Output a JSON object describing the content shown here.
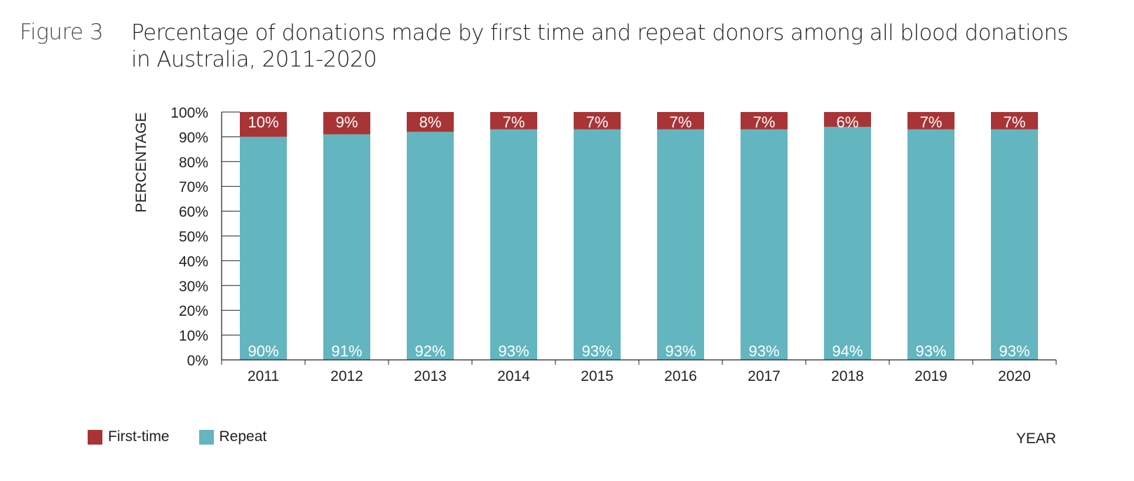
{
  "figure": {
    "label": "Figure 3",
    "title": "Percentage of donations made by first time and repeat donors among all blood donations in Australia, 2011-2020"
  },
  "chart_data": {
    "type": "bar",
    "stacked": true,
    "categories": [
      "2011",
      "2012",
      "2013",
      "2014",
      "2015",
      "2016",
      "2017",
      "2018",
      "2019",
      "2020"
    ],
    "series": [
      {
        "name": "Repeat",
        "color": "#63b5c0",
        "values": [
          90,
          91,
          92,
          93,
          93,
          93,
          93,
          94,
          93,
          93
        ],
        "labels": [
          "90%",
          "91%",
          "92%",
          "93%",
          "93%",
          "93%",
          "93%",
          "94%",
          "93%",
          "93%"
        ]
      },
      {
        "name": "First-time",
        "color": "#a83436",
        "values": [
          10,
          9,
          8,
          7,
          7,
          7,
          7,
          6,
          7,
          7
        ],
        "labels": [
          "10%",
          "9%",
          "8%",
          "7%",
          "7%",
          "7%",
          "7%",
          "6%",
          "7%",
          "7%"
        ]
      }
    ],
    "ylabel": "PERCENTAGE",
    "xlabel": "YEAR",
    "ylim": [
      0,
      100
    ],
    "yticks": [
      "0%",
      "10%",
      "20%",
      "30%",
      "40%",
      "50%",
      "60%",
      "70%",
      "80%",
      "90%",
      "100%"
    ],
    "legend": "bottom-left",
    "grid": false
  }
}
